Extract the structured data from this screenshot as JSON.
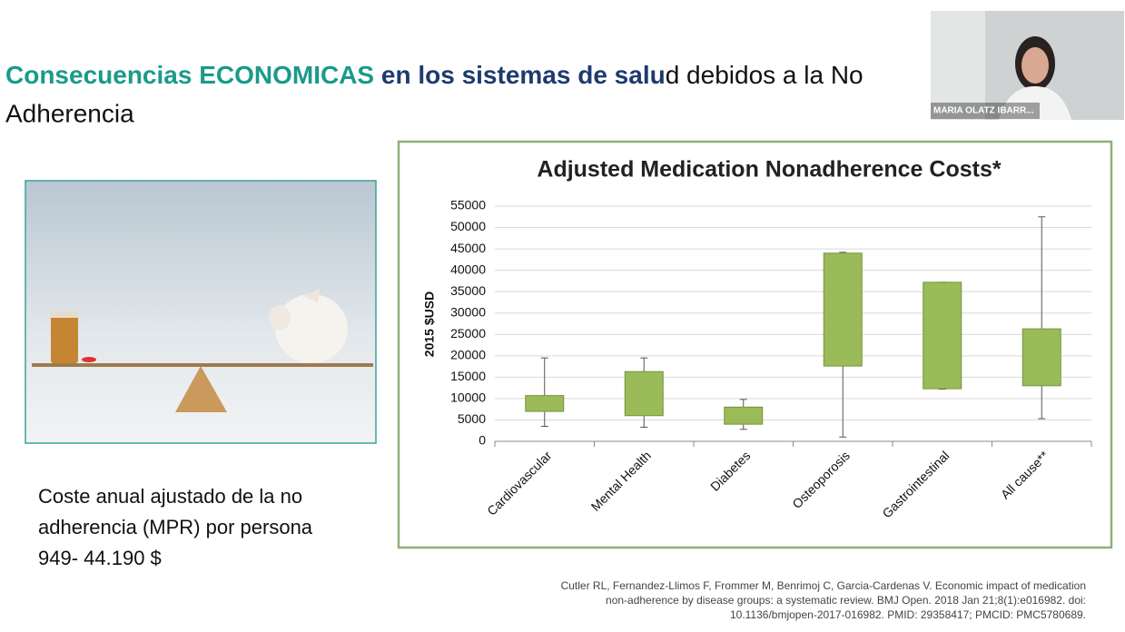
{
  "slide": {
    "title_parts": [
      "Consecuencias ECONOMICAS",
      " en los sistemas de salu",
      "d debidos a la No"
    ],
    "title_line2": "Adherencia",
    "caption_lines": [
      "Coste anual ajustado de la no",
      "adherencia (MPR) por persona",
      "949- 44.190 $"
    ],
    "citation_lines": [
      "Cutler RL, Fernandez-Llimos F, Frommer M, Benrimoj C, Garcia-Cardenas V. Economic impact of medication",
      "non-adherence by disease groups: a systematic review. BMJ Open. 2018 Jan 21;8(1):e016982. doi:",
      "10.1136/bmjopen-2017-016982. PMID: 29358417; PMCID: PMC5780689."
    ]
  },
  "webcam": {
    "name": "MARIA OLATZ IBARR..."
  },
  "chart_data": {
    "type": "box",
    "title": "Adjusted Medication Nonadherence Costs*",
    "y_label": "2015 $USD",
    "categories": [
      "Cardiovascular",
      "Mental Health",
      "Diabetes",
      "Osteoporosis",
      "Gastrointestinal",
      "All cause**"
    ],
    "whisker_low": [
      3500,
      3300,
      2800,
      1000,
      12200,
      5300
    ],
    "box_low": [
      7000,
      6000,
      4000,
      17600,
      12300,
      13000
    ],
    "box_high": [
      10700,
      16300,
      8000,
      44000,
      37200,
      26300
    ],
    "whisker_high": [
      19500,
      19500,
      9800,
      44200,
      37200,
      52500
    ],
    "color": "#9bbb59",
    "ylim": [
      0,
      55000
    ],
    "yticks": [
      0,
      5000,
      10000,
      15000,
      20000,
      25000,
      30000,
      35000,
      40000,
      45000,
      50000,
      55000
    ],
    "grid": true
  }
}
